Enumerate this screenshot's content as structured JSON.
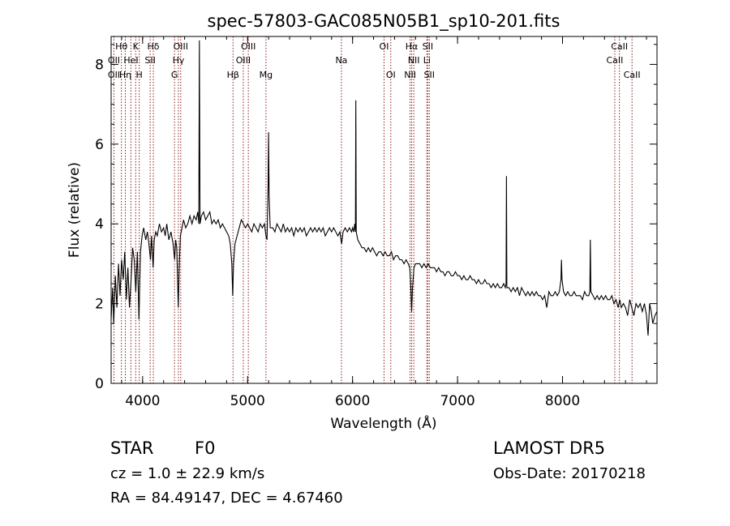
{
  "chart_data": {
    "type": "line",
    "title": "spec-57803-GAC085N05B1_sp10-201.fits",
    "xlabel": "Wavelength (Å)",
    "ylabel": "Flux (relative)",
    "xlim": [
      3700,
      8900
    ],
    "ylim": [
      0,
      8.7
    ],
    "xticks": [
      4000,
      5000,
      6000,
      7000,
      8000
    ],
    "yticks": [
      0,
      2,
      4,
      6,
      8
    ],
    "grid": false,
    "line_color": "#000000",
    "marker_color": "#8b1a1a",
    "spectrum": [
      [
        3700,
        1.6
      ],
      [
        3715,
        2.4
      ],
      [
        3725,
        1.5
      ],
      [
        3740,
        2.7
      ],
      [
        3755,
        1.9
      ],
      [
        3770,
        3.0
      ],
      [
        3785,
        2.2
      ],
      [
        3800,
        3.1
      ],
      [
        3815,
        2.6
      ],
      [
        3830,
        3.3
      ],
      [
        3845,
        2.1
      ],
      [
        3860,
        2.9
      ],
      [
        3875,
        1.9
      ],
      [
        3890,
        2.6
      ],
      [
        3905,
        3.4
      ],
      [
        3920,
        3.1
      ],
      [
        3935,
        2.3
      ],
      [
        3950,
        3.3
      ],
      [
        3965,
        1.6
      ],
      [
        3980,
        3.3
      ],
      [
        3995,
        3.7
      ],
      [
        4010,
        3.9
      ],
      [
        4030,
        3.6
      ],
      [
        4045,
        3.8
      ],
      [
        4060,
        3.5
      ],
      [
        4075,
        3.1
      ],
      [
        4085,
        3.7
      ],
      [
        4100,
        2.9
      ],
      [
        4110,
        3.6
      ],
      [
        4125,
        3.8
      ],
      [
        4140,
        3.7
      ],
      [
        4160,
        4.0
      ],
      [
        4180,
        3.8
      ],
      [
        4200,
        3.9
      ],
      [
        4215,
        3.7
      ],
      [
        4230,
        4.0
      ],
      [
        4250,
        3.6
      ],
      [
        4270,
        3.8
      ],
      [
        4290,
        3.5
      ],
      [
        4305,
        3.1
      ],
      [
        4315,
        3.6
      ],
      [
        4325,
        3.4
      ],
      [
        4340,
        1.9
      ],
      [
        4350,
        3.0
      ],
      [
        4360,
        3.7
      ],
      [
        4375,
        3.9
      ],
      [
        4390,
        4.1
      ],
      [
        4410,
        3.9
      ],
      [
        4430,
        4.0
      ],
      [
        4450,
        4.2
      ],
      [
        4470,
        4.0
      ],
      [
        4490,
        4.2
      ],
      [
        4510,
        4.1
      ],
      [
        4525,
        4.3
      ],
      [
        4535,
        4.0
      ],
      [
        4541,
        8.6
      ],
      [
        4547,
        4.0
      ],
      [
        4560,
        4.2
      ],
      [
        4580,
        4.3
      ],
      [
        4600,
        4.1
      ],
      [
        4620,
        4.2
      ],
      [
        4640,
        4.3
      ],
      [
        4660,
        4.0
      ],
      [
        4680,
        4.1
      ],
      [
        4700,
        4.0
      ],
      [
        4720,
        4.1
      ],
      [
        4740,
        3.9
      ],
      [
        4760,
        4.0
      ],
      [
        4780,
        3.9
      ],
      [
        4800,
        3.8
      ],
      [
        4820,
        3.7
      ],
      [
        4835,
        3.5
      ],
      [
        4850,
        3.0
      ],
      [
        4858,
        2.2
      ],
      [
        4866,
        3.0
      ],
      [
        4880,
        3.5
      ],
      [
        4900,
        3.7
      ],
      [
        4920,
        3.9
      ],
      [
        4940,
        4.1
      ],
      [
        4960,
        4.0
      ],
      [
        4980,
        3.9
      ],
      [
        5000,
        4.0
      ],
      [
        5020,
        3.9
      ],
      [
        5040,
        3.8
      ],
      [
        5060,
        4.0
      ],
      [
        5080,
        3.9
      ],
      [
        5100,
        3.8
      ],
      [
        5120,
        4.0
      ],
      [
        5140,
        3.9
      ],
      [
        5160,
        4.0
      ],
      [
        5175,
        3.7
      ],
      [
        5185,
        3.6
      ],
      [
        5195,
        4.9
      ],
      [
        5200,
        6.3
      ],
      [
        5205,
        4.7
      ],
      [
        5215,
        3.9
      ],
      [
        5240,
        3.9
      ],
      [
        5260,
        3.8
      ],
      [
        5280,
        4.0
      ],
      [
        5300,
        3.9
      ],
      [
        5320,
        3.8
      ],
      [
        5340,
        4.0
      ],
      [
        5360,
        3.8
      ],
      [
        5380,
        3.9
      ],
      [
        5400,
        3.8
      ],
      [
        5420,
        3.9
      ],
      [
        5440,
        3.7
      ],
      [
        5460,
        3.9
      ],
      [
        5480,
        3.8
      ],
      [
        5500,
        3.9
      ],
      [
        5520,
        3.8
      ],
      [
        5540,
        3.9
      ],
      [
        5560,
        3.7
      ],
      [
        5580,
        3.8
      ],
      [
        5600,
        3.9
      ],
      [
        5620,
        3.8
      ],
      [
        5640,
        3.9
      ],
      [
        5660,
        3.8
      ],
      [
        5680,
        3.9
      ],
      [
        5700,
        3.8
      ],
      [
        5720,
        3.9
      ],
      [
        5740,
        3.7
      ],
      [
        5760,
        3.8
      ],
      [
        5780,
        3.9
      ],
      [
        5800,
        3.8
      ],
      [
        5820,
        3.9
      ],
      [
        5840,
        3.8
      ],
      [
        5860,
        3.7
      ],
      [
        5880,
        3.8
      ],
      [
        5890,
        3.6
      ],
      [
        5896,
        3.5
      ],
      [
        5910,
        3.8
      ],
      [
        5930,
        3.9
      ],
      [
        5950,
        3.8
      ],
      [
        5970,
        3.9
      ],
      [
        5990,
        3.8
      ],
      [
        6000,
        3.9
      ],
      [
        6010,
        3.8
      ],
      [
        6020,
        4.0
      ],
      [
        6027,
        3.8
      ],
      [
        6031,
        7.1
      ],
      [
        6035,
        3.8
      ],
      [
        6050,
        3.6
      ],
      [
        6070,
        3.5
      ],
      [
        6090,
        3.4
      ],
      [
        6110,
        3.4
      ],
      [
        6130,
        3.3
      ],
      [
        6150,
        3.4
      ],
      [
        6170,
        3.3
      ],
      [
        6190,
        3.4
      ],
      [
        6210,
        3.3
      ],
      [
        6230,
        3.2
      ],
      [
        6250,
        3.3
      ],
      [
        6270,
        3.3
      ],
      [
        6290,
        3.2
      ],
      [
        6310,
        3.3
      ],
      [
        6330,
        3.2
      ],
      [
        6350,
        3.2
      ],
      [
        6370,
        3.3
      ],
      [
        6390,
        3.1
      ],
      [
        6410,
        3.2
      ],
      [
        6430,
        3.2
      ],
      [
        6450,
        3.1
      ],
      [
        6470,
        3.1
      ],
      [
        6490,
        3.0
      ],
      [
        6510,
        3.1
      ],
      [
        6530,
        3.0
      ],
      [
        6545,
        2.9
      ],
      [
        6555,
        2.4
      ],
      [
        6563,
        1.8
      ],
      [
        6571,
        2.4
      ],
      [
        6585,
        2.9
      ],
      [
        6600,
        3.0
      ],
      [
        6620,
        3.0
      ],
      [
        6640,
        3.0
      ],
      [
        6660,
        2.9
      ],
      [
        6680,
        3.0
      ],
      [
        6700,
        2.9
      ],
      [
        6720,
        3.0
      ],
      [
        6740,
        2.9
      ],
      [
        6760,
        2.9
      ],
      [
        6780,
        2.9
      ],
      [
        6800,
        2.8
      ],
      [
        6820,
        2.9
      ],
      [
        6840,
        2.8
      ],
      [
        6860,
        2.8
      ],
      [
        6880,
        2.7
      ],
      [
        6900,
        2.8
      ],
      [
        6920,
        2.8
      ],
      [
        6940,
        2.7
      ],
      [
        6960,
        2.7
      ],
      [
        6980,
        2.8
      ],
      [
        7000,
        2.7
      ],
      [
        7020,
        2.7
      ],
      [
        7040,
        2.6
      ],
      [
        7060,
        2.7
      ],
      [
        7080,
        2.6
      ],
      [
        7100,
        2.6
      ],
      [
        7120,
        2.7
      ],
      [
        7140,
        2.6
      ],
      [
        7160,
        2.6
      ],
      [
        7180,
        2.5
      ],
      [
        7200,
        2.6
      ],
      [
        7220,
        2.5
      ],
      [
        7240,
        2.5
      ],
      [
        7260,
        2.6
      ],
      [
        7280,
        2.5
      ],
      [
        7300,
        2.5
      ],
      [
        7320,
        2.4
      ],
      [
        7340,
        2.5
      ],
      [
        7360,
        2.4
      ],
      [
        7380,
        2.5
      ],
      [
        7400,
        2.4
      ],
      [
        7420,
        2.4
      ],
      [
        7440,
        2.5
      ],
      [
        7455,
        2.4
      ],
      [
        7462,
        2.5
      ],
      [
        7466,
        5.2
      ],
      [
        7470,
        2.4
      ],
      [
        7490,
        2.4
      ],
      [
        7510,
        2.3
      ],
      [
        7530,
        2.4
      ],
      [
        7550,
        2.3
      ],
      [
        7570,
        2.4
      ],
      [
        7590,
        2.2
      ],
      [
        7610,
        2.4
      ],
      [
        7630,
        2.3
      ],
      [
        7650,
        2.2
      ],
      [
        7670,
        2.3
      ],
      [
        7690,
        2.2
      ],
      [
        7710,
        2.3
      ],
      [
        7730,
        2.2
      ],
      [
        7750,
        2.3
      ],
      [
        7770,
        2.2
      ],
      [
        7790,
        2.2
      ],
      [
        7810,
        2.1
      ],
      [
        7830,
        2.2
      ],
      [
        7850,
        1.9
      ],
      [
        7870,
        2.3
      ],
      [
        7890,
        2.2
      ],
      [
        7910,
        2.2
      ],
      [
        7930,
        2.3
      ],
      [
        7950,
        2.2
      ],
      [
        7970,
        2.3
      ],
      [
        7985,
        2.6
      ],
      [
        7990,
        3.1
      ],
      [
        7995,
        2.6
      ],
      [
        8010,
        2.3
      ],
      [
        8030,
        2.2
      ],
      [
        8050,
        2.3
      ],
      [
        8070,
        2.2
      ],
      [
        8090,
        2.2
      ],
      [
        8110,
        2.3
      ],
      [
        8130,
        2.2
      ],
      [
        8150,
        2.2
      ],
      [
        8170,
        2.2
      ],
      [
        8190,
        2.1
      ],
      [
        8210,
        2.3
      ],
      [
        8230,
        2.2
      ],
      [
        8250,
        2.2
      ],
      [
        8260,
        2.3
      ],
      [
        8265,
        3.6
      ],
      [
        8270,
        2.3
      ],
      [
        8290,
        2.2
      ],
      [
        8310,
        2.1
      ],
      [
        8330,
        2.2
      ],
      [
        8350,
        2.1
      ],
      [
        8370,
        2.2
      ],
      [
        8390,
        2.1
      ],
      [
        8410,
        2.2
      ],
      [
        8430,
        2.1
      ],
      [
        8450,
        2.1
      ],
      [
        8470,
        2.2
      ],
      [
        8490,
        2.0
      ],
      [
        8510,
        2.1
      ],
      [
        8530,
        1.9
      ],
      [
        8545,
        2.1
      ],
      [
        8560,
        1.9
      ],
      [
        8580,
        2.0
      ],
      [
        8600,
        1.9
      ],
      [
        8620,
        1.7
      ],
      [
        8640,
        2.1
      ],
      [
        8660,
        1.9
      ],
      [
        8680,
        1.7
      ],
      [
        8700,
        2.0
      ],
      [
        8720,
        1.9
      ],
      [
        8740,
        2.0
      ],
      [
        8760,
        1.8
      ],
      [
        8780,
        2.0
      ],
      [
        8800,
        1.7
      ],
      [
        8815,
        1.2
      ],
      [
        8830,
        2.0
      ],
      [
        8845,
        1.8
      ],
      [
        8860,
        1.5
      ],
      [
        8880,
        1.7
      ],
      [
        8900,
        1.8
      ]
    ],
    "lines": [
      {
        "label": "Hθ",
        "lam": 3798,
        "row": 0
      },
      {
        "label": "OII",
        "lam": 3727,
        "row": 1
      },
      {
        "label": "OII",
        "lam": 3727,
        "row": 2
      },
      {
        "label": "Hη",
        "lam": 3835,
        "row": 2
      },
      {
        "label": "HeI",
        "lam": 3889,
        "row": 1
      },
      {
        "label": "K",
        "lam": 3934,
        "row": 0
      },
      {
        "label": "H",
        "lam": 3968,
        "row": 2
      },
      {
        "label": "SII",
        "lam": 4072,
        "row": 1
      },
      {
        "label": "Hδ",
        "lam": 4102,
        "row": 0
      },
      {
        "label": "G",
        "lam": 4304,
        "row": 2
      },
      {
        "label": "Hγ",
        "lam": 4341,
        "row": 1
      },
      {
        "label": "OIII",
        "lam": 4363,
        "row": 0
      },
      {
        "label": "Hβ",
        "lam": 4861,
        "row": 2
      },
      {
        "label": "OIII",
        "lam": 4959,
        "row": 1
      },
      {
        "label": "OIII",
        "lam": 5007,
        "row": 0
      },
      {
        "label": "Mg",
        "lam": 5175,
        "row": 2
      },
      {
        "label": "Na",
        "lam": 5894,
        "row": 1
      },
      {
        "label": "OI",
        "lam": 6300,
        "row": 0
      },
      {
        "label": "OI",
        "lam": 6364,
        "row": 2
      },
      {
        "label": "NII",
        "lam": 6548,
        "row": 2
      },
      {
        "label": "NII",
        "lam": 6583,
        "row": 1
      },
      {
        "label": "Hα",
        "lam": 6563,
        "row": 0
      },
      {
        "label": "Li",
        "lam": 6708,
        "row": 1
      },
      {
        "label": "SII",
        "lam": 6716,
        "row": 0
      },
      {
        "label": "SII",
        "lam": 6731,
        "row": 2
      },
      {
        "label": "CaII",
        "lam": 8498,
        "row": 1
      },
      {
        "label": "CaII",
        "lam": 8542,
        "row": 0
      },
      {
        "label": "CaII",
        "lam": 8662,
        "row": 2
      }
    ]
  },
  "info": {
    "class": "STAR",
    "subclass": "F0",
    "release": "LAMOST DR5",
    "cz": "cz = 1.0 ± 22.9 km/s",
    "obs_date": "Obs-Date: 20170218",
    "coords": "RA =  84.49147, DEC =   4.67460"
  }
}
